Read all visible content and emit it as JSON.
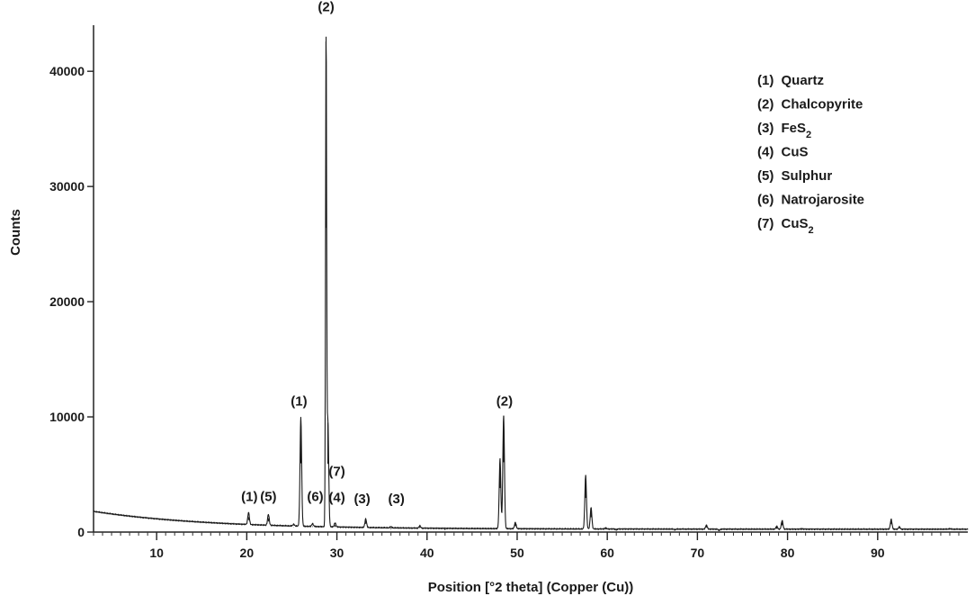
{
  "chart_data": {
    "type": "line",
    "xlabel": "Position [°2 theta] (Copper (Cu))",
    "ylabel": "Counts",
    "xlim": [
      3,
      100
    ],
    "ylim": [
      0,
      44000
    ],
    "grid": false,
    "legend_position": "top-right",
    "x_ticks": [
      10,
      20,
      30,
      40,
      50,
      60,
      70,
      80,
      90
    ],
    "x_tick_labels": [
      "10",
      "20",
      "30",
      "40",
      "50",
      "60",
      "70",
      "80",
      "90"
    ],
    "y_ticks": [
      0,
      10000,
      20000,
      30000,
      40000
    ],
    "y_tick_labels": [
      "0",
      "10000",
      "20000",
      "30000",
      "40000"
    ],
    "baseline": {
      "start": 1800,
      "end": 250
    },
    "peaks": [
      {
        "x": 20.2,
        "y": 1300
      },
      {
        "x": 22.4,
        "y": 1200
      },
      {
        "x": 25.2,
        "y": 400
      },
      {
        "x": 26.0,
        "y": 9700
      },
      {
        "x": 27.3,
        "y": 500
      },
      {
        "x": 28.8,
        "y": 43000
      },
      {
        "x": 29.0,
        "y": 9500
      },
      {
        "x": 29.8,
        "y": 600
      },
      {
        "x": 33.2,
        "y": 1000
      },
      {
        "x": 36.0,
        "y": 350
      },
      {
        "x": 39.2,
        "y": 450
      },
      {
        "x": 42.0,
        "y": 250
      },
      {
        "x": 48.1,
        "y": 6300
      },
      {
        "x": 48.5,
        "y": 10100
      },
      {
        "x": 49.8,
        "y": 800
      },
      {
        "x": 57.6,
        "y": 4900
      },
      {
        "x": 58.2,
        "y": 2100
      },
      {
        "x": 59.8,
        "y": 350
      },
      {
        "x": 61.0,
        "y": 200
      },
      {
        "x": 67.5,
        "y": 200
      },
      {
        "x": 71.0,
        "y": 600
      },
      {
        "x": 72.4,
        "y": 150
      },
      {
        "x": 78.8,
        "y": 500
      },
      {
        "x": 79.4,
        "y": 1000
      },
      {
        "x": 81.6,
        "y": 300
      },
      {
        "x": 91.5,
        "y": 1100
      },
      {
        "x": 92.4,
        "y": 450
      },
      {
        "x": 98.0,
        "y": 300
      }
    ],
    "annotations": [
      {
        "text": "(2)",
        "x": 28.8,
        "y": 45200
      },
      {
        "text": "(1)",
        "x": 25.8,
        "y": 11000
      },
      {
        "text": "(2)",
        "x": 48.6,
        "y": 11000
      },
      {
        "text": "(1)",
        "x": 20.3,
        "y": 2700
      },
      {
        "text": "(5)",
        "x": 22.4,
        "y": 2700
      },
      {
        "text": "(6)",
        "x": 27.6,
        "y": 2700
      },
      {
        "text": "(7)",
        "x": 30.0,
        "y": 4900
      },
      {
        "text": "(4)",
        "x": 30.0,
        "y": 2600
      },
      {
        "text": "(3)",
        "x": 32.8,
        "y": 2500
      },
      {
        "text": "(3)",
        "x": 36.6,
        "y": 2500
      }
    ],
    "legend": [
      {
        "num": "(1)",
        "name": "Quartz"
      },
      {
        "num": "(2)",
        "name": "Chalcopyrite"
      },
      {
        "num": "(3)",
        "name": "FeS",
        "sub": "2"
      },
      {
        "num": "(4)",
        "name": "CuS"
      },
      {
        "num": "(5)",
        "name": "Sulphur"
      },
      {
        "num": "(6)",
        "name": "Natrojarosite"
      },
      {
        "num": "(7)",
        "name": "CuS",
        "sub": "2"
      }
    ]
  }
}
